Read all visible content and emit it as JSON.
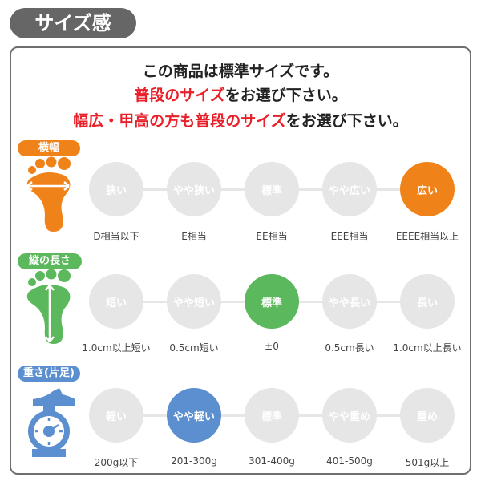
{
  "title": "サイズ感",
  "intro": {
    "line1": "この商品は標準サイズです。",
    "line2a": "普段のサイズ",
    "line2b": "をお選び下さい。",
    "line3a": "幅広・甲高の方も普段のサイズ",
    "line3b": "をお選び下さい。"
  },
  "rows": [
    {
      "label": "横幅",
      "color": "#f0821a",
      "icon": "foot-width-icon",
      "selected": 4,
      "options": [
        "狭い",
        "やや狭い",
        "標準",
        "やや広い",
        "広い"
      ],
      "captions": [
        "D相当以下",
        "E相当",
        "EE相当",
        "EEE相当",
        "EEEE相当以上"
      ]
    },
    {
      "label": "縦の長さ",
      "color": "#5cb85c",
      "icon": "foot-length-icon",
      "selected": 2,
      "options": [
        "短い",
        "やや短い",
        "標準",
        "やや長い",
        "長い"
      ],
      "captions": [
        "1.0cm以上短い",
        "0.5cm短い",
        "±0",
        "0.5cm長い",
        "1.0cm以上長い"
      ]
    },
    {
      "label": "重さ(片足)",
      "color": "#5b8fcf",
      "icon": "scale-icon",
      "selected": 1,
      "options": [
        "軽い",
        "やや軽い",
        "標準",
        "やや重め",
        "重め"
      ],
      "captions": [
        "200g以下",
        "201-300g",
        "301-400g",
        "401-500g",
        "501g以上"
      ]
    }
  ]
}
